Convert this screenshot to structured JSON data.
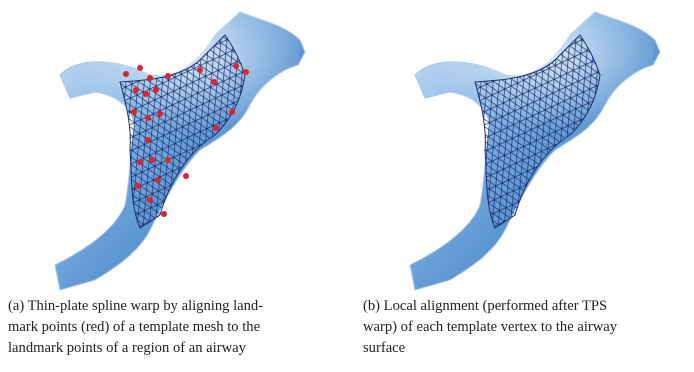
{
  "captions": [
    {
      "lines": [
        "(a) Thin-plate spline warp by aligning land-",
        "mark points (red) of a template mesh to the",
        "landmark points of a region of an airway"
      ]
    },
    {
      "lines": [
        "(b) Local alignment (performed after TPS",
        "warp) of each template vertex to the airway",
        "surface"
      ]
    }
  ]
}
